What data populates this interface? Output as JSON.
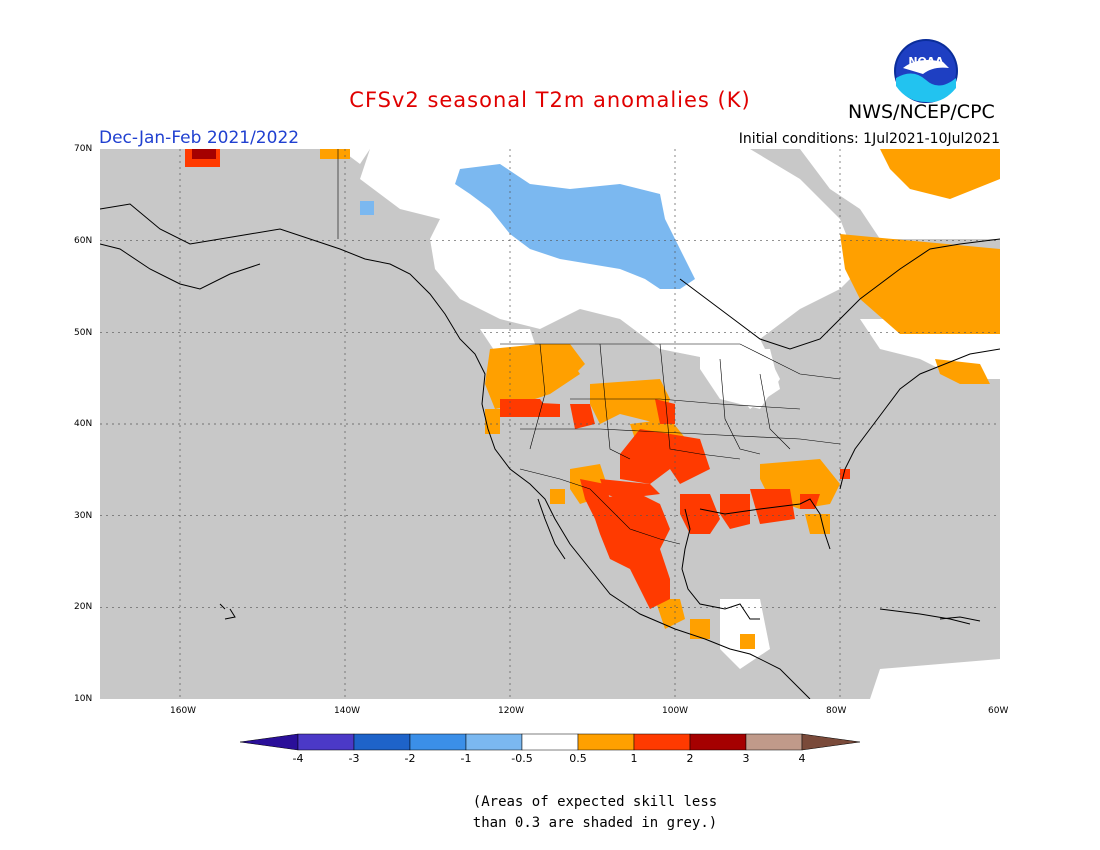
{
  "header": {
    "title": "CFSv2 seasonal T2m anomalies (K)",
    "agency": "NWS/NCEP/CPC",
    "season": "Dec-Jan-Feb 2021/2022",
    "initial_conditions": "Initial conditions: 1Jul2021-10Jul2021",
    "logo_text": "NOAA"
  },
  "axes": {
    "lat_labels": [
      "70N",
      "60N",
      "50N",
      "40N",
      "30N",
      "20N",
      "10N"
    ],
    "lon_labels": [
      "160W",
      "140W",
      "120W",
      "100W",
      "80W",
      "60W"
    ]
  },
  "legend": {
    "labels": [
      "-4",
      "-3",
      "-2",
      "-1",
      "-0.5",
      "0.5",
      "1",
      "2",
      "3",
      "4"
    ],
    "colors": [
      "#2a0f99",
      "#4b39c7",
      "#1e63c9",
      "#3b8fe8",
      "#7bb8f0",
      "#ffffff",
      "#ffa000",
      "#ff3a00",
      "#a50000",
      "#c09a8a",
      "#7a4a3a"
    ]
  },
  "colors": {
    "skill_grey": "#c8c8c8",
    "neutral_white": "#ffffff",
    "light_blue": "#7bb8f0",
    "orange": "#ffa000",
    "red": "#ff3a00",
    "dark_red": "#a50000"
  },
  "footnote": {
    "line1": "(Areas of expected skill less",
    "line2": "than 0.3 are shaded in grey.)"
  }
}
